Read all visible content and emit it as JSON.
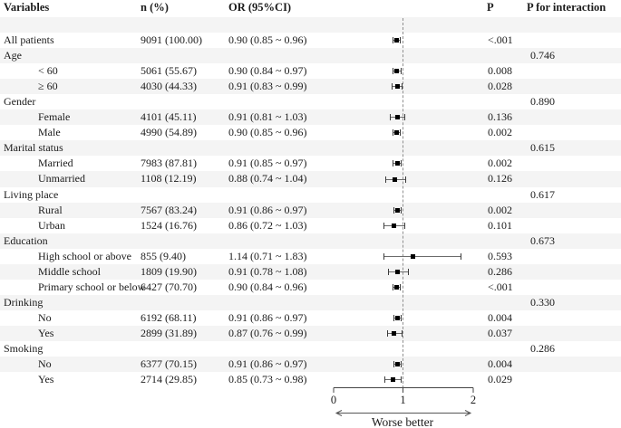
{
  "header": {
    "variables": "Variables",
    "n": "n (%)",
    "or": "OR (95%CI)",
    "p": "P",
    "p_interaction": "P for interaction"
  },
  "colors": {
    "stripe": "#f4f4f4",
    "text": "#1b1b1b",
    "marker": "#000000",
    "ci_line": "#6b6b6b",
    "reference_line": "#909090"
  },
  "chart_data": {
    "type": "scatter",
    "subtype": "forest-plot",
    "xlim": [
      0,
      2
    ],
    "x_ticks": [
      0,
      1,
      2
    ],
    "reference_x": 1,
    "axis_caption": "Worse better",
    "legend_position": "none",
    "grid": false,
    "rows": [
      {
        "kind": "spacer"
      },
      {
        "kind": "data",
        "label": "All patients",
        "indent": 0,
        "n": "9091 (100.00)",
        "or_ci": "0.90 (0.85 ~ 0.96)",
        "est": 0.9,
        "lo": 0.85,
        "hi": 0.96,
        "p": "<.001",
        "p_interaction": ""
      },
      {
        "kind": "group",
        "label": "Age",
        "p_interaction": "0.746"
      },
      {
        "kind": "data",
        "label": "< 60",
        "indent": 1,
        "n": "5061 (55.67)",
        "or_ci": "0.90 (0.84 ~ 0.97)",
        "est": 0.9,
        "lo": 0.84,
        "hi": 0.97,
        "p": "0.008",
        "p_interaction": ""
      },
      {
        "kind": "data",
        "label": "≥  60",
        "indent": 1,
        "n": "4030 (44.33)",
        "or_ci": "0.91 (0.83 ~ 0.99)",
        "est": 0.91,
        "lo": 0.83,
        "hi": 0.99,
        "p": "0.028",
        "p_interaction": ""
      },
      {
        "kind": "group",
        "label": "Gender",
        "p_interaction": "0.890"
      },
      {
        "kind": "data",
        "label": "Female",
        "indent": 1,
        "n": "4101 (45.11)",
        "or_ci": "0.91 (0.81 ~ 1.03)",
        "est": 0.91,
        "lo": 0.81,
        "hi": 1.03,
        "p": "0.136",
        "p_interaction": ""
      },
      {
        "kind": "data",
        "label": "Male",
        "indent": 1,
        "n": "4990 (54.89)",
        "or_ci": "0.90 (0.85 ~ 0.96)",
        "est": 0.9,
        "lo": 0.85,
        "hi": 0.96,
        "p": "0.002",
        "p_interaction": ""
      },
      {
        "kind": "group",
        "label": "Marital status",
        "p_interaction": "0.615"
      },
      {
        "kind": "data",
        "label": "Married",
        "indent": 1,
        "n": "7983 (87.81)",
        "or_ci": "0.91 (0.85 ~ 0.97)",
        "est": 0.91,
        "lo": 0.85,
        "hi": 0.97,
        "p": "0.002",
        "p_interaction": ""
      },
      {
        "kind": "data",
        "label": "Unmarried",
        "indent": 1,
        "n": "1108 (12.19)",
        "or_ci": "0.88 (0.74 ~ 1.04)",
        "est": 0.88,
        "lo": 0.74,
        "hi": 1.04,
        "p": "0.126",
        "p_interaction": ""
      },
      {
        "kind": "group",
        "label": "Living place",
        "p_interaction": "0.617"
      },
      {
        "kind": "data",
        "label": "Rural",
        "indent": 1,
        "n": "7567 (83.24)",
        "or_ci": "0.91 (0.86 ~ 0.97)",
        "est": 0.91,
        "lo": 0.86,
        "hi": 0.97,
        "p": "0.002",
        "p_interaction": ""
      },
      {
        "kind": "data",
        "label": "Urban",
        "indent": 1,
        "n": "1524 (16.76)",
        "or_ci": "0.86 (0.72 ~ 1.03)",
        "est": 0.86,
        "lo": 0.72,
        "hi": 1.03,
        "p": "0.101",
        "p_interaction": ""
      },
      {
        "kind": "group",
        "label": "Education",
        "p_interaction": "0.673"
      },
      {
        "kind": "data",
        "label": "High school or above",
        "indent": 1,
        "n": "855 (9.40)",
        "or_ci": "1.14 (0.71 ~ 1.83)",
        "est": 1.14,
        "lo": 0.71,
        "hi": 1.83,
        "p": "0.593",
        "p_interaction": ""
      },
      {
        "kind": "data",
        "label": "Middle school",
        "indent": 1,
        "n": "1809 (19.90)",
        "or_ci": "0.91 (0.78 ~ 1.08)",
        "est": 0.91,
        "lo": 0.78,
        "hi": 1.08,
        "p": "0.286",
        "p_interaction": ""
      },
      {
        "kind": "data",
        "label": "Primary school or below",
        "indent": 1,
        "n": "6427 (70.70)",
        "or_ci": "0.90 (0.84 ~ 0.96)",
        "est": 0.9,
        "lo": 0.84,
        "hi": 0.96,
        "p": "<.001",
        "p_interaction": ""
      },
      {
        "kind": "group",
        "label": "Drinking",
        "p_interaction": "0.330"
      },
      {
        "kind": "data",
        "label": "No",
        "indent": 1,
        "n": "6192 (68.11)",
        "or_ci": "0.91 (0.86 ~ 0.97)",
        "est": 0.91,
        "lo": 0.86,
        "hi": 0.97,
        "p": "0.004",
        "p_interaction": ""
      },
      {
        "kind": "data",
        "label": "Yes",
        "indent": 1,
        "n": "2899 (31.89)",
        "or_ci": "0.87 (0.76 ~ 0.99)",
        "est": 0.87,
        "lo": 0.76,
        "hi": 0.99,
        "p": "0.037",
        "p_interaction": ""
      },
      {
        "kind": "group",
        "label": "Smoking",
        "p_interaction": "0.286"
      },
      {
        "kind": "data",
        "label": "No",
        "indent": 1,
        "n": "6377 (70.15)",
        "or_ci": "0.91 (0.86 ~ 0.97)",
        "est": 0.91,
        "lo": 0.86,
        "hi": 0.97,
        "p": "0.004",
        "p_interaction": ""
      },
      {
        "kind": "data",
        "label": "Yes",
        "indent": 1,
        "n": "2714 (29.85)",
        "or_ci": "0.85 (0.73 ~ 0.98)",
        "est": 0.85,
        "lo": 0.73,
        "hi": 0.98,
        "p": "0.029",
        "p_interaction": ""
      }
    ]
  }
}
